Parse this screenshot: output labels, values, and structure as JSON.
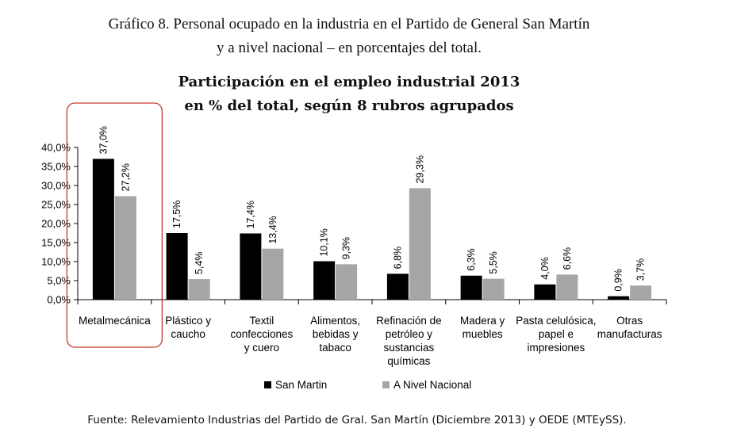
{
  "caption": {
    "line1": "Gráfico 8. Personal ocupado en la industria en el Partido de General San Martín",
    "line2": "y a nivel nacional – en porcentajes del total."
  },
  "source": "Fuente: Relevamiento Industrias del Partido de Gral. San Martín (Diciembre 2013) y OEDE (MTEySS).",
  "chart_data": {
    "type": "bar",
    "title": "Participación en el empleo industrial 2013",
    "subtitle": "en % del total, según 8 rubros agrupados",
    "categories": [
      [
        "Metalmecánica"
      ],
      [
        "Plástico y",
        "caucho"
      ],
      [
        "Textil",
        "confecciones",
        "y cuero"
      ],
      [
        "Alimentos,",
        "bebidas y",
        "tabaco"
      ],
      [
        "Refinación de",
        "petróleo y",
        "sustancias",
        "químicas"
      ],
      [
        "Madera y",
        "muebles"
      ],
      [
        "Pasta celulósica,",
        "papel e",
        "impresiones"
      ],
      [
        "Otras",
        "manufacturas"
      ]
    ],
    "series": [
      {
        "name": "San Martin",
        "color": "#000000",
        "values": [
          37.0,
          17.5,
          17.4,
          10.1,
          6.8,
          6.3,
          4.0,
          0.9
        ],
        "labels": [
          "37,0%",
          "17,5%",
          "17,4%",
          "10,1%",
          "6,8%",
          "6,3%",
          "4,0%",
          "0,9%"
        ]
      },
      {
        "name": "A Nivel Nacional",
        "color": "#a6a6a6",
        "values": [
          27.2,
          5.4,
          13.4,
          9.3,
          29.3,
          5.5,
          6.6,
          3.7
        ],
        "labels": [
          "27,2%",
          "5,4%",
          "13,4%",
          "9,3%",
          "29,3%",
          "5,5%",
          "6,6%",
          "3,7%"
        ]
      }
    ],
    "yticks": [
      "0,0%",
      "5,0%",
      "10,0%",
      "15,0%",
      "20,0%",
      "25,0%",
      "30,0%",
      "35,0%",
      "40,0%"
    ],
    "ylim": [
      0,
      40
    ],
    "legend_position": "bottom",
    "highlight_category": "Metalmecánica",
    "highlight_color": "#c0392b"
  }
}
